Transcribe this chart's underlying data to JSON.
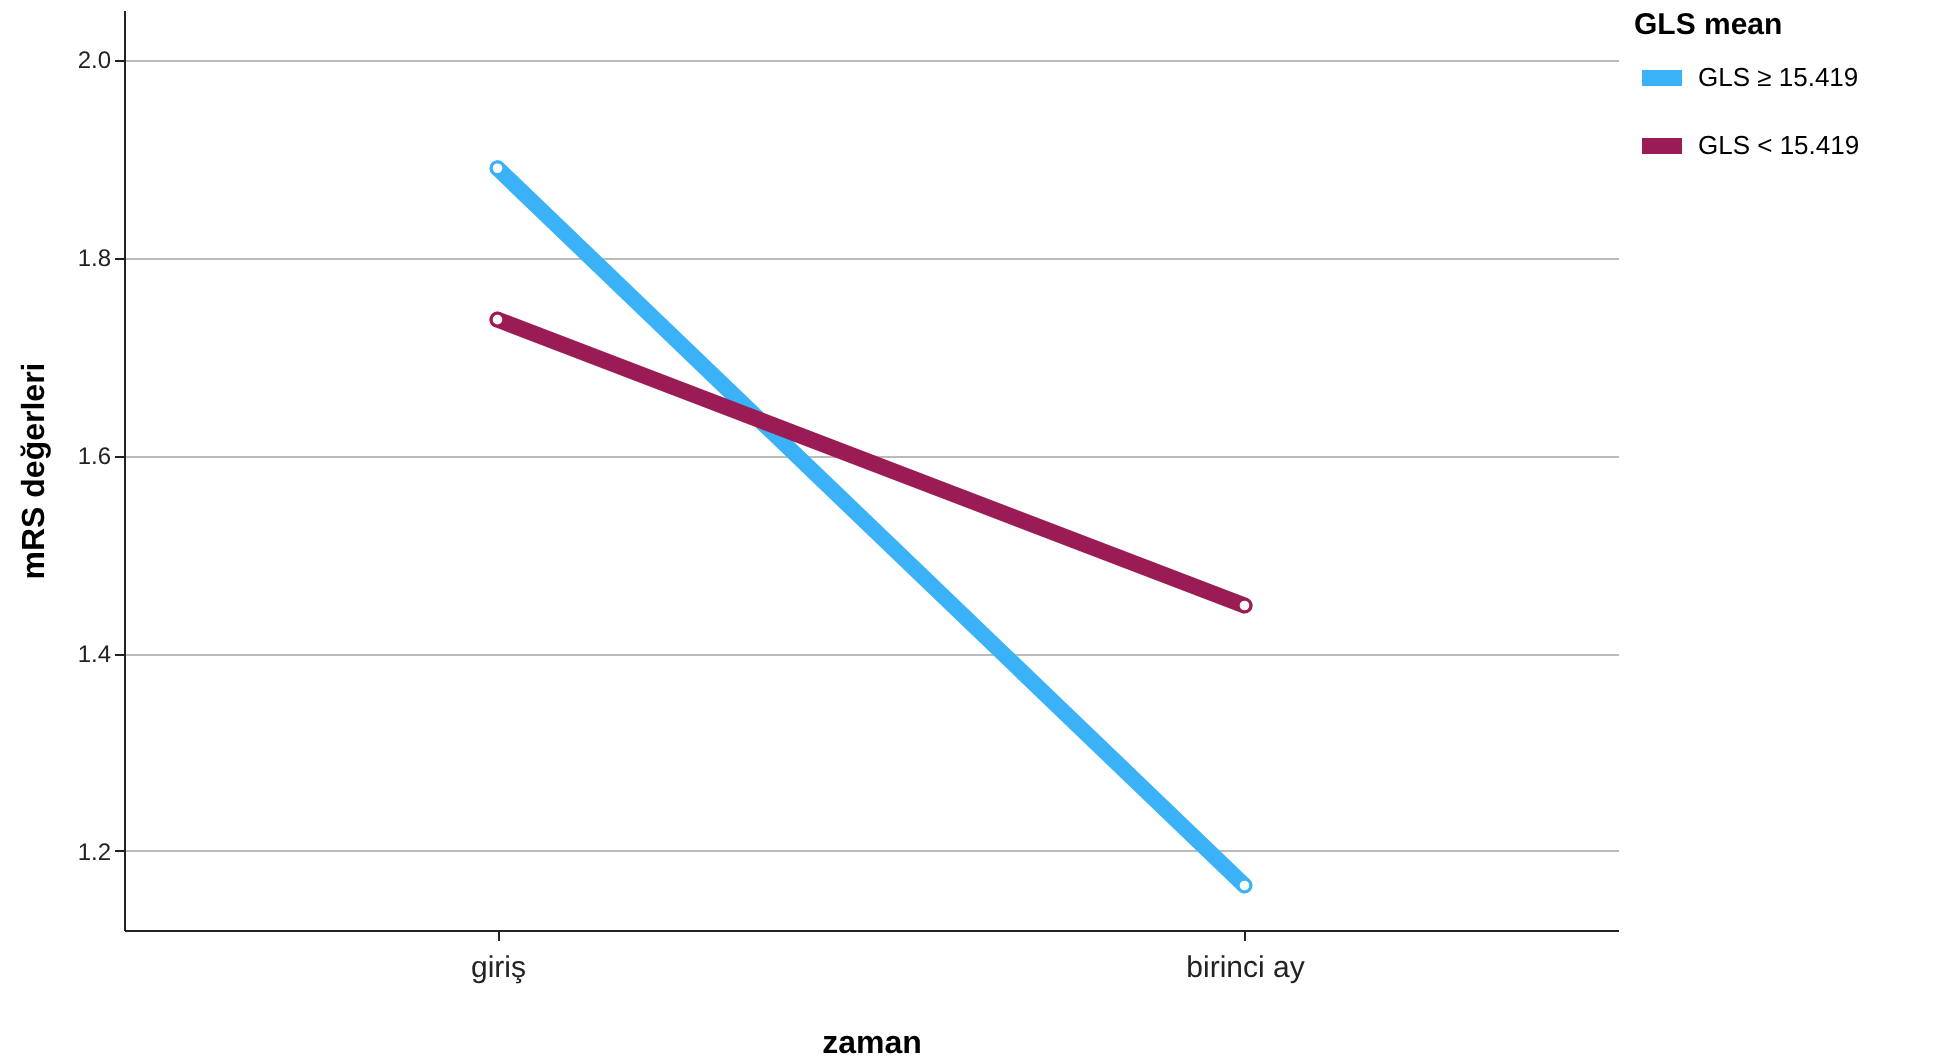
{
  "chart_data": {
    "type": "line",
    "xlabel": "zaman",
    "ylabel": "mRS değerleri",
    "legend_title": "GLS mean",
    "categories": [
      "giriş",
      "birinci ay"
    ],
    "series": [
      {
        "name": "GLS ≥ 15.419",
        "color": "#3bb2f7",
        "values": [
          1.89,
          1.165
        ]
      },
      {
        "name": "GLS < 15.419",
        "color": "#9b1c54",
        "values": [
          1.737,
          1.448
        ]
      }
    ],
    "ylim": [
      1.12,
      2.05
    ],
    "yticks": [
      {
        "value": 1.2,
        "label": "1.2"
      },
      {
        "value": 1.4,
        "label": "1.4"
      },
      {
        "value": 1.6,
        "label": "1.6"
      },
      {
        "value": 1.8,
        "label": "1.8"
      },
      {
        "value": 2,
        "label": "2.0"
      }
    ],
    "grid": "y",
    "legend": "top right",
    "marker": "circle",
    "line_style": "solid"
  }
}
